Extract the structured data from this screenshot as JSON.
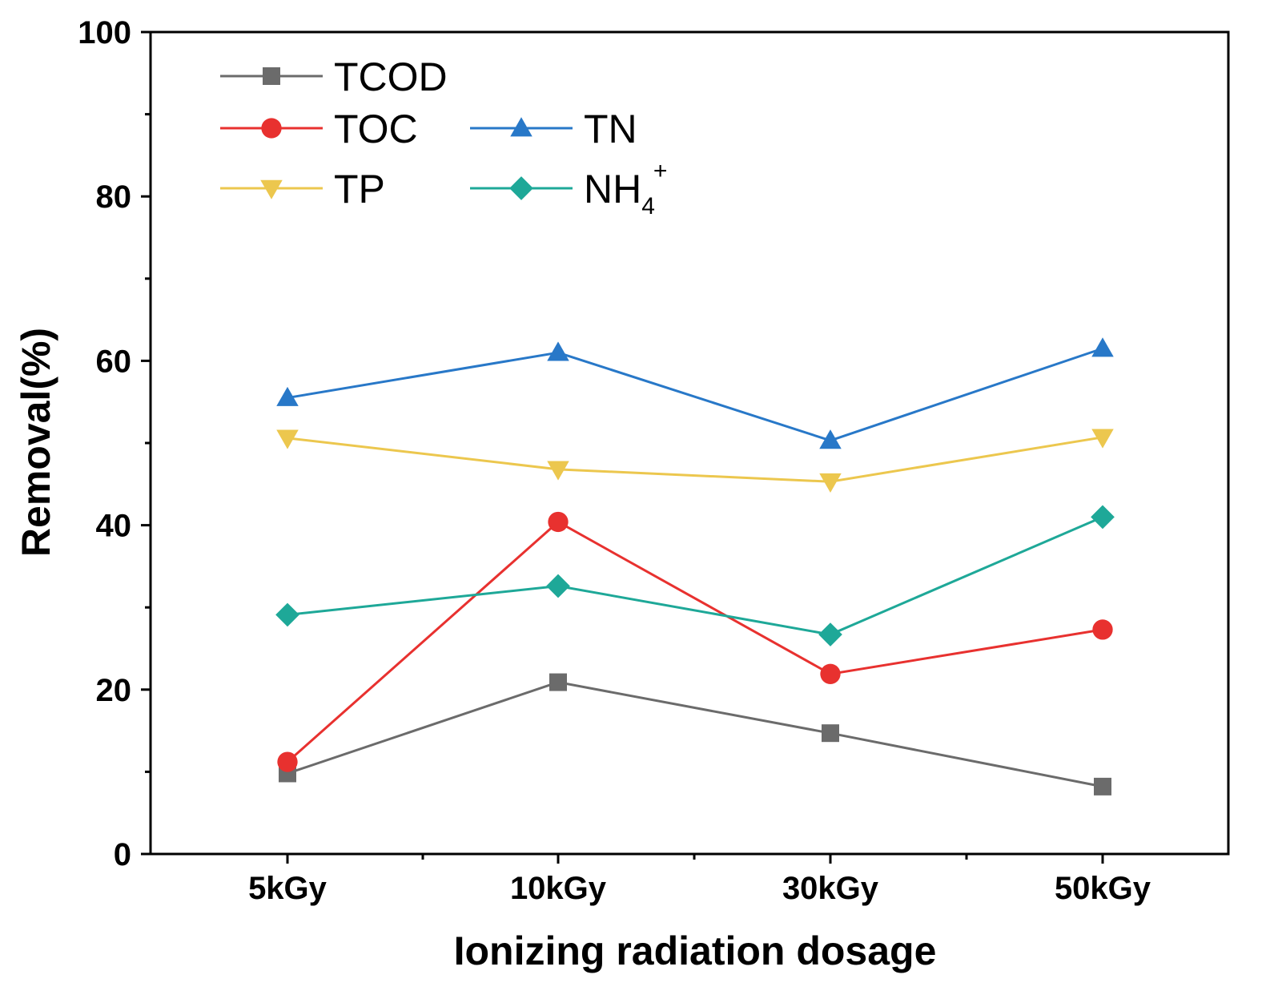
{
  "chart_data": {
    "type": "line",
    "title": "",
    "xlabel": "Ionizing radiation dosage",
    "ylabel": "Removal(%)",
    "ylim": [
      0,
      100
    ],
    "yticks": [
      0,
      20,
      40,
      60,
      80,
      100
    ],
    "categories": [
      "5kGy",
      "10kGy",
      "30kGy",
      "50kGy"
    ],
    "legend_position": "top-left",
    "series": [
      {
        "name": "TCOD",
        "marker": "square",
        "color": "#6b6b6b",
        "values": [
          9.8,
          20.9,
          14.7,
          8.2
        ]
      },
      {
        "name": "TOC",
        "marker": "circle",
        "color": "#e8312f",
        "values": [
          11.2,
          40.4,
          21.9,
          27.3
        ]
      },
      {
        "name": "TN",
        "marker": "triangle-up",
        "color": "#2878c8",
        "values": [
          55.5,
          61.0,
          50.3,
          61.5
        ]
      },
      {
        "name": "TP",
        "marker": "triangle-down",
        "color": "#ecc74e",
        "values": [
          50.6,
          46.8,
          45.3,
          50.7
        ]
      },
      {
        "name": "NH4+",
        "label_main": "NH",
        "label_sub": "4",
        "label_sup": "+",
        "marker": "diamond",
        "color": "#1ea898",
        "values": [
          29.1,
          32.6,
          26.7,
          41.0
        ]
      }
    ]
  }
}
